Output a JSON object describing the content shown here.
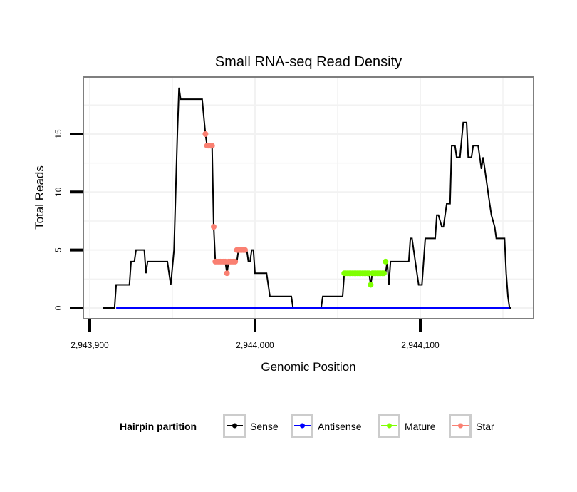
{
  "chart_data": {
    "type": "line",
    "title": "Small RNA-seq Read Density",
    "xlabel": "Genomic Position",
    "ylabel": "Total Reads",
    "xlim": [
      2943891,
      2944171
    ],
    "ylim": [
      -1,
      19.9
    ],
    "x_ticks": [
      2943900,
      2944000,
      2944100
    ],
    "x_tick_labels": [
      "2,943,900",
      "2,944,000",
      "2,944,100"
    ],
    "y_ticks": [
      0,
      5,
      10,
      15
    ],
    "y_tick_labels": [
      "0",
      "5",
      "10",
      "15"
    ],
    "grid": true,
    "legend": {
      "title": "Hairpin partition",
      "placement": "bottom",
      "entries": [
        {
          "name": "Sense",
          "color": "#000000"
        },
        {
          "name": "Antisense",
          "color": "#0000ff"
        },
        {
          "name": "Mature",
          "color": "#7fff00"
        },
        {
          "name": "Star",
          "color": "#fa8072"
        }
      ]
    },
    "series": [
      {
        "name": "Sense",
        "color": "#000000",
        "kind": "line",
        "x": [
          2943908,
          2943915,
          2943916,
          2943924,
          2943925,
          2943927,
          2943928,
          2943933,
          2943934,
          2943935,
          2943947,
          2943949,
          2943951,
          2943953,
          2943954,
          2943955,
          2943968,
          2943970,
          2943971,
          2943974,
          2943975,
          2943976,
          2943982,
          2943983,
          2943984,
          2943989,
          2943990,
          2943995,
          2943996,
          2943997,
          2943998,
          2943999,
          2944000,
          2944007,
          2944008,
          2944009,
          2944022,
          2944023,
          2944040,
          2944041,
          2944053,
          2944054,
          2944069,
          2944070,
          2944071,
          2944079,
          2944080,
          2944081,
          2944082,
          2944093,
          2944094,
          2944095,
          2944097,
          2944099,
          2944101,
          2944103,
          2944109,
          2944110,
          2944111,
          2944113,
          2944114,
          2944116,
          2944118,
          2944119,
          2944121,
          2944122,
          2944124,
          2944126,
          2944128,
          2944129,
          2944131,
          2944132,
          2944135,
          2944136,
          2944137,
          2944138,
          2944140,
          2944142,
          2944143,
          2944145,
          2944146,
          2944151,
          2944152,
          2944153,
          2944154,
          2944155
        ],
        "y": [
          0,
          0,
          2,
          2,
          4,
          4,
          5,
          5,
          3,
          4,
          4,
          2,
          5,
          15,
          19,
          18,
          18,
          15,
          14,
          14,
          7,
          4,
          4,
          3,
          4,
          4,
          5,
          5,
          4,
          4,
          5,
          5,
          3,
          3,
          2,
          1,
          1,
          0,
          0,
          1,
          1,
          3,
          3,
          2,
          3,
          3,
          4,
          2,
          4,
          4,
          6,
          6,
          4,
          2,
          2,
          6,
          6,
          8,
          8,
          7,
          7,
          9,
          9,
          14,
          14,
          13,
          13,
          16,
          16,
          13,
          13,
          14,
          14,
          13,
          12,
          13,
          11,
          9,
          8,
          7,
          6,
          6,
          3,
          1,
          0,
          0
        ]
      },
      {
        "name": "Antisense",
        "color": "#0000ff",
        "kind": "line",
        "x": [
          2943916,
          2944154
        ],
        "y": [
          0,
          0
        ]
      },
      {
        "name": "Mature",
        "color": "#7fff00",
        "kind": "points",
        "x": [
          2944054,
          2944055,
          2944056,
          2944057,
          2944058,
          2944059,
          2944060,
          2944061,
          2944062,
          2944063,
          2944064,
          2944065,
          2944066,
          2944067,
          2944068,
          2944069,
          2944070,
          2944071,
          2944072,
          2944073,
          2944074,
          2944075,
          2944076,
          2944077,
          2944078,
          2944079
        ],
        "y": [
          3,
          3,
          3,
          3,
          3,
          3,
          3,
          3,
          3,
          3,
          3,
          3,
          3,
          3,
          3,
          3,
          2,
          3,
          3,
          3,
          3,
          3,
          3,
          3,
          3,
          4
        ]
      },
      {
        "name": "Star",
        "color": "#fa8072",
        "kind": "points",
        "x": [
          2943970,
          2943971,
          2943972,
          2943973,
          2943974,
          2943975,
          2943976,
          2943977,
          2943978,
          2943979,
          2943980,
          2943981,
          2943982,
          2943983,
          2943984,
          2943985,
          2943986,
          2943987,
          2943988,
          2943989,
          2943990,
          2943991,
          2943992,
          2943993,
          2943994
        ],
        "y": [
          15,
          14,
          14,
          14,
          14,
          7,
          4,
          4,
          4,
          4,
          4,
          4,
          4,
          3,
          4,
          4,
          4,
          4,
          4,
          5,
          5,
          5,
          5,
          5,
          5
        ]
      }
    ]
  }
}
